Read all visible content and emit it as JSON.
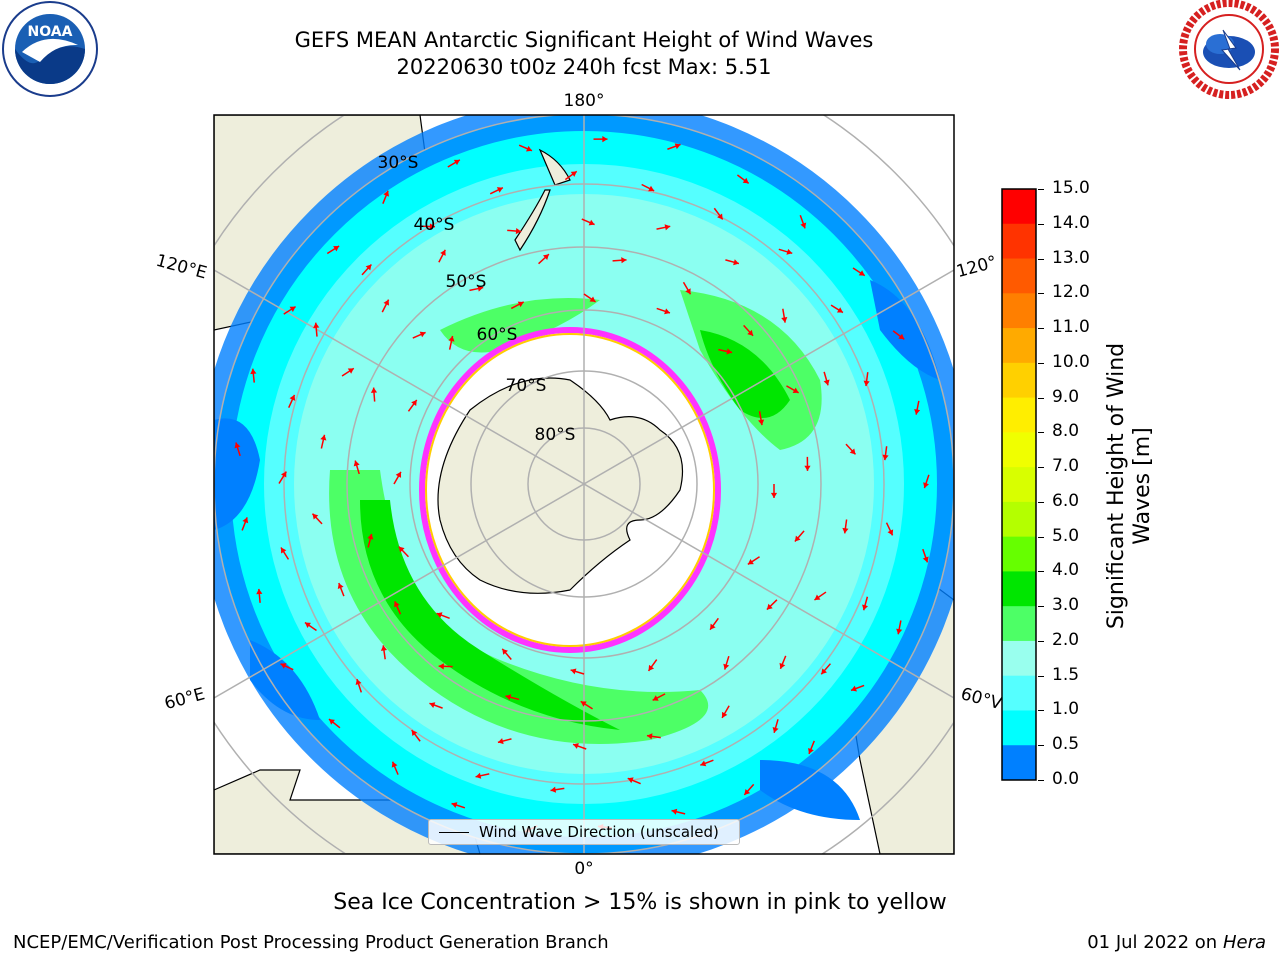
{
  "title_line1": "GEFS MEAN Antarctic Significant Height of Wind Waves",
  "title_line2": "20220630 t00z 240h fcst   Max: 5.51",
  "logos": {
    "left": {
      "name": "noaa-logo",
      "text": "NOAA"
    },
    "right": {
      "name": "nws-logo"
    }
  },
  "map": {
    "lon_labels": {
      "top": "180°",
      "bottom": "0°",
      "left_upper": "120°E",
      "left_lower": "60°E",
      "right_upper": "120°",
      "right_lower": "60°V"
    },
    "lat_labels": [
      "30°S",
      "40°S",
      "50°S",
      "60°S",
      "70°S",
      "80°S"
    ],
    "legend": "Wind Wave Direction (unscaled)"
  },
  "colorbar": {
    "title_line1": "Significant Height of Wind",
    "title_line2": "Waves [m]",
    "ticks": [
      "15.0",
      "14.0",
      "13.0",
      "12.0",
      "11.0",
      "10.0",
      "9.0",
      "8.0",
      "7.0",
      "6.0",
      "5.0",
      "4.0",
      "3.0",
      "2.0",
      "1.5",
      "1.0",
      "0.5",
      "0.0"
    ],
    "colors": [
      "#ff0000",
      "#ff3300",
      "#ff5a00",
      "#ff7f00",
      "#ffaa00",
      "#ffd000",
      "#ffee00",
      "#f0ff00",
      "#d8ff00",
      "#b4ff00",
      "#66ff00",
      "#00e600",
      "#4dff66",
      "#99ffee",
      "#55ffff",
      "#00ffff",
      "#0080ff",
      "#0000ff"
    ]
  },
  "note": "Sea Ice Concentration > 15% is shown in pink to yellow",
  "footer_left": "NCEP/EMC/Verification Post Processing Product Generation Branch",
  "footer_date": "01 Jul 2022 on ",
  "footer_host": "Hera"
}
